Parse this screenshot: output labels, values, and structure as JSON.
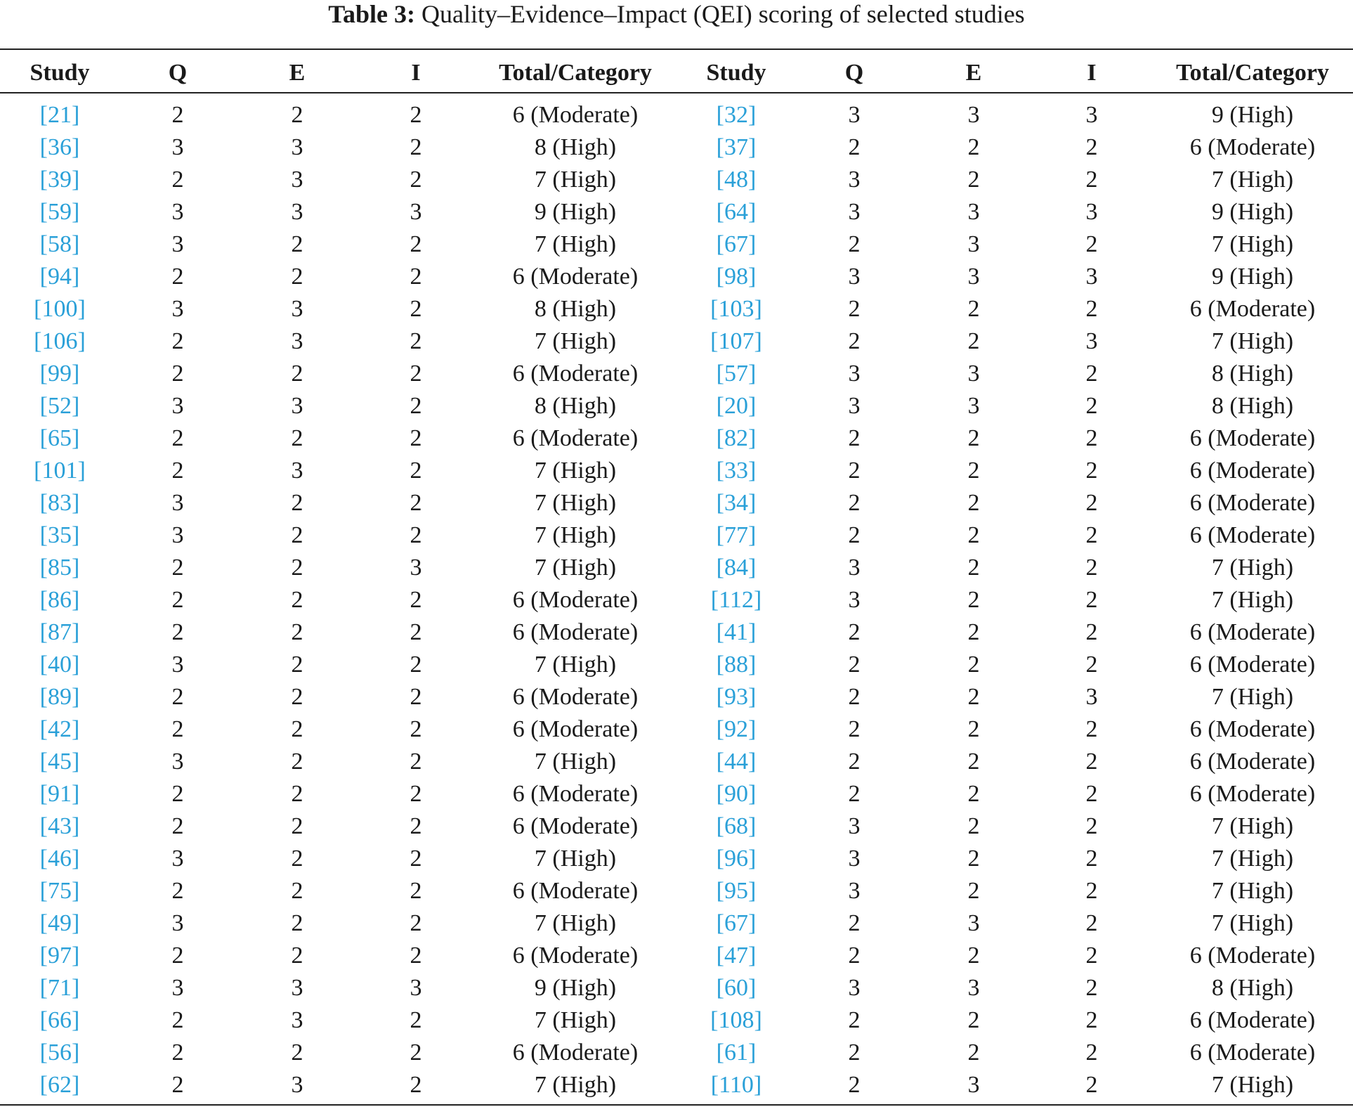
{
  "caption": {
    "label": "Table 3:",
    "text": "Quality–Evidence–Impact (QEI) scoring of selected studies"
  },
  "table": {
    "columns": [
      "Study",
      "Q",
      "E",
      "I",
      "Total/Category",
      "Study",
      "Q",
      "E",
      "I",
      "Total/Category"
    ],
    "rows": [
      [
        "[21]",
        2,
        2,
        2,
        "6 (Moderate)",
        "[32]",
        3,
        3,
        3,
        "9 (High)"
      ],
      [
        "[36]",
        3,
        3,
        2,
        "8 (High)",
        "[37]",
        2,
        2,
        2,
        "6 (Moderate)"
      ],
      [
        "[39]",
        2,
        3,
        2,
        "7 (High)",
        "[48]",
        3,
        2,
        2,
        "7 (High)"
      ],
      [
        "[59]",
        3,
        3,
        3,
        "9 (High)",
        "[64]",
        3,
        3,
        3,
        "9 (High)"
      ],
      [
        "[58]",
        3,
        2,
        2,
        "7 (High)",
        "[67]",
        2,
        3,
        2,
        "7 (High)"
      ],
      [
        "[94]",
        2,
        2,
        2,
        "6 (Moderate)",
        "[98]",
        3,
        3,
        3,
        "9 (High)"
      ],
      [
        "[100]",
        3,
        3,
        2,
        "8 (High)",
        "[103]",
        2,
        2,
        2,
        "6 (Moderate)"
      ],
      [
        "[106]",
        2,
        3,
        2,
        "7 (High)",
        "[107]",
        2,
        2,
        3,
        "7 (High)"
      ],
      [
        "[99]",
        2,
        2,
        2,
        "6 (Moderate)",
        "[57]",
        3,
        3,
        2,
        "8 (High)"
      ],
      [
        "[52]",
        3,
        3,
        2,
        "8 (High)",
        "[20]",
        3,
        3,
        2,
        "8 (High)"
      ],
      [
        "[65]",
        2,
        2,
        2,
        "6 (Moderate)",
        "[82]",
        2,
        2,
        2,
        "6 (Moderate)"
      ],
      [
        "[101]",
        2,
        3,
        2,
        "7 (High)",
        "[33]",
        2,
        2,
        2,
        "6 (Moderate)"
      ],
      [
        "[83]",
        3,
        2,
        2,
        "7 (High)",
        "[34]",
        2,
        2,
        2,
        "6 (Moderate)"
      ],
      [
        "[35]",
        3,
        2,
        2,
        "7 (High)",
        "[77]",
        2,
        2,
        2,
        "6 (Moderate)"
      ],
      [
        "[85]",
        2,
        2,
        3,
        "7 (High)",
        "[84]",
        3,
        2,
        2,
        "7 (High)"
      ],
      [
        "[86]",
        2,
        2,
        2,
        "6 (Moderate)",
        "[112]",
        3,
        2,
        2,
        "7 (High)"
      ],
      [
        "[87]",
        2,
        2,
        2,
        "6 (Moderate)",
        "[41]",
        2,
        2,
        2,
        "6 (Moderate)"
      ],
      [
        "[40]",
        3,
        2,
        2,
        "7 (High)",
        "[88]",
        2,
        2,
        2,
        "6 (Moderate)"
      ],
      [
        "[89]",
        2,
        2,
        2,
        "6 (Moderate)",
        "[93]",
        2,
        2,
        3,
        "7 (High)"
      ],
      [
        "[42]",
        2,
        2,
        2,
        "6 (Moderate)",
        "[92]",
        2,
        2,
        2,
        "6 (Moderate)"
      ],
      [
        "[45]",
        3,
        2,
        2,
        "7 (High)",
        "[44]",
        2,
        2,
        2,
        "6 (Moderate)"
      ],
      [
        "[91]",
        2,
        2,
        2,
        "6 (Moderate)",
        "[90]",
        2,
        2,
        2,
        "6 (Moderate)"
      ],
      [
        "[43]",
        2,
        2,
        2,
        "6 (Moderate)",
        "[68]",
        3,
        2,
        2,
        "7 (High)"
      ],
      [
        "[46]",
        3,
        2,
        2,
        "7 (High)",
        "[96]",
        3,
        2,
        2,
        "7 (High)"
      ],
      [
        "[75]",
        2,
        2,
        2,
        "6 (Moderate)",
        "[95]",
        3,
        2,
        2,
        "7 (High)"
      ],
      [
        "[49]",
        3,
        2,
        2,
        "7 (High)",
        "[67]",
        2,
        3,
        2,
        "7 (High)"
      ],
      [
        "[97]",
        2,
        2,
        2,
        "6 (Moderate)",
        "[47]",
        2,
        2,
        2,
        "6 (Moderate)"
      ],
      [
        "[71]",
        3,
        3,
        3,
        "9 (High)",
        "[60]",
        3,
        3,
        2,
        "8 (High)"
      ],
      [
        "[66]",
        2,
        3,
        2,
        "7 (High)",
        "[108]",
        2,
        2,
        2,
        "6 (Moderate)"
      ],
      [
        "[56]",
        2,
        2,
        2,
        "6 (Moderate)",
        "[61]",
        2,
        2,
        2,
        "6 (Moderate)"
      ],
      [
        "[62]",
        2,
        3,
        2,
        "7 (High)",
        "[110]",
        2,
        3,
        2,
        "7 (High)"
      ]
    ]
  }
}
